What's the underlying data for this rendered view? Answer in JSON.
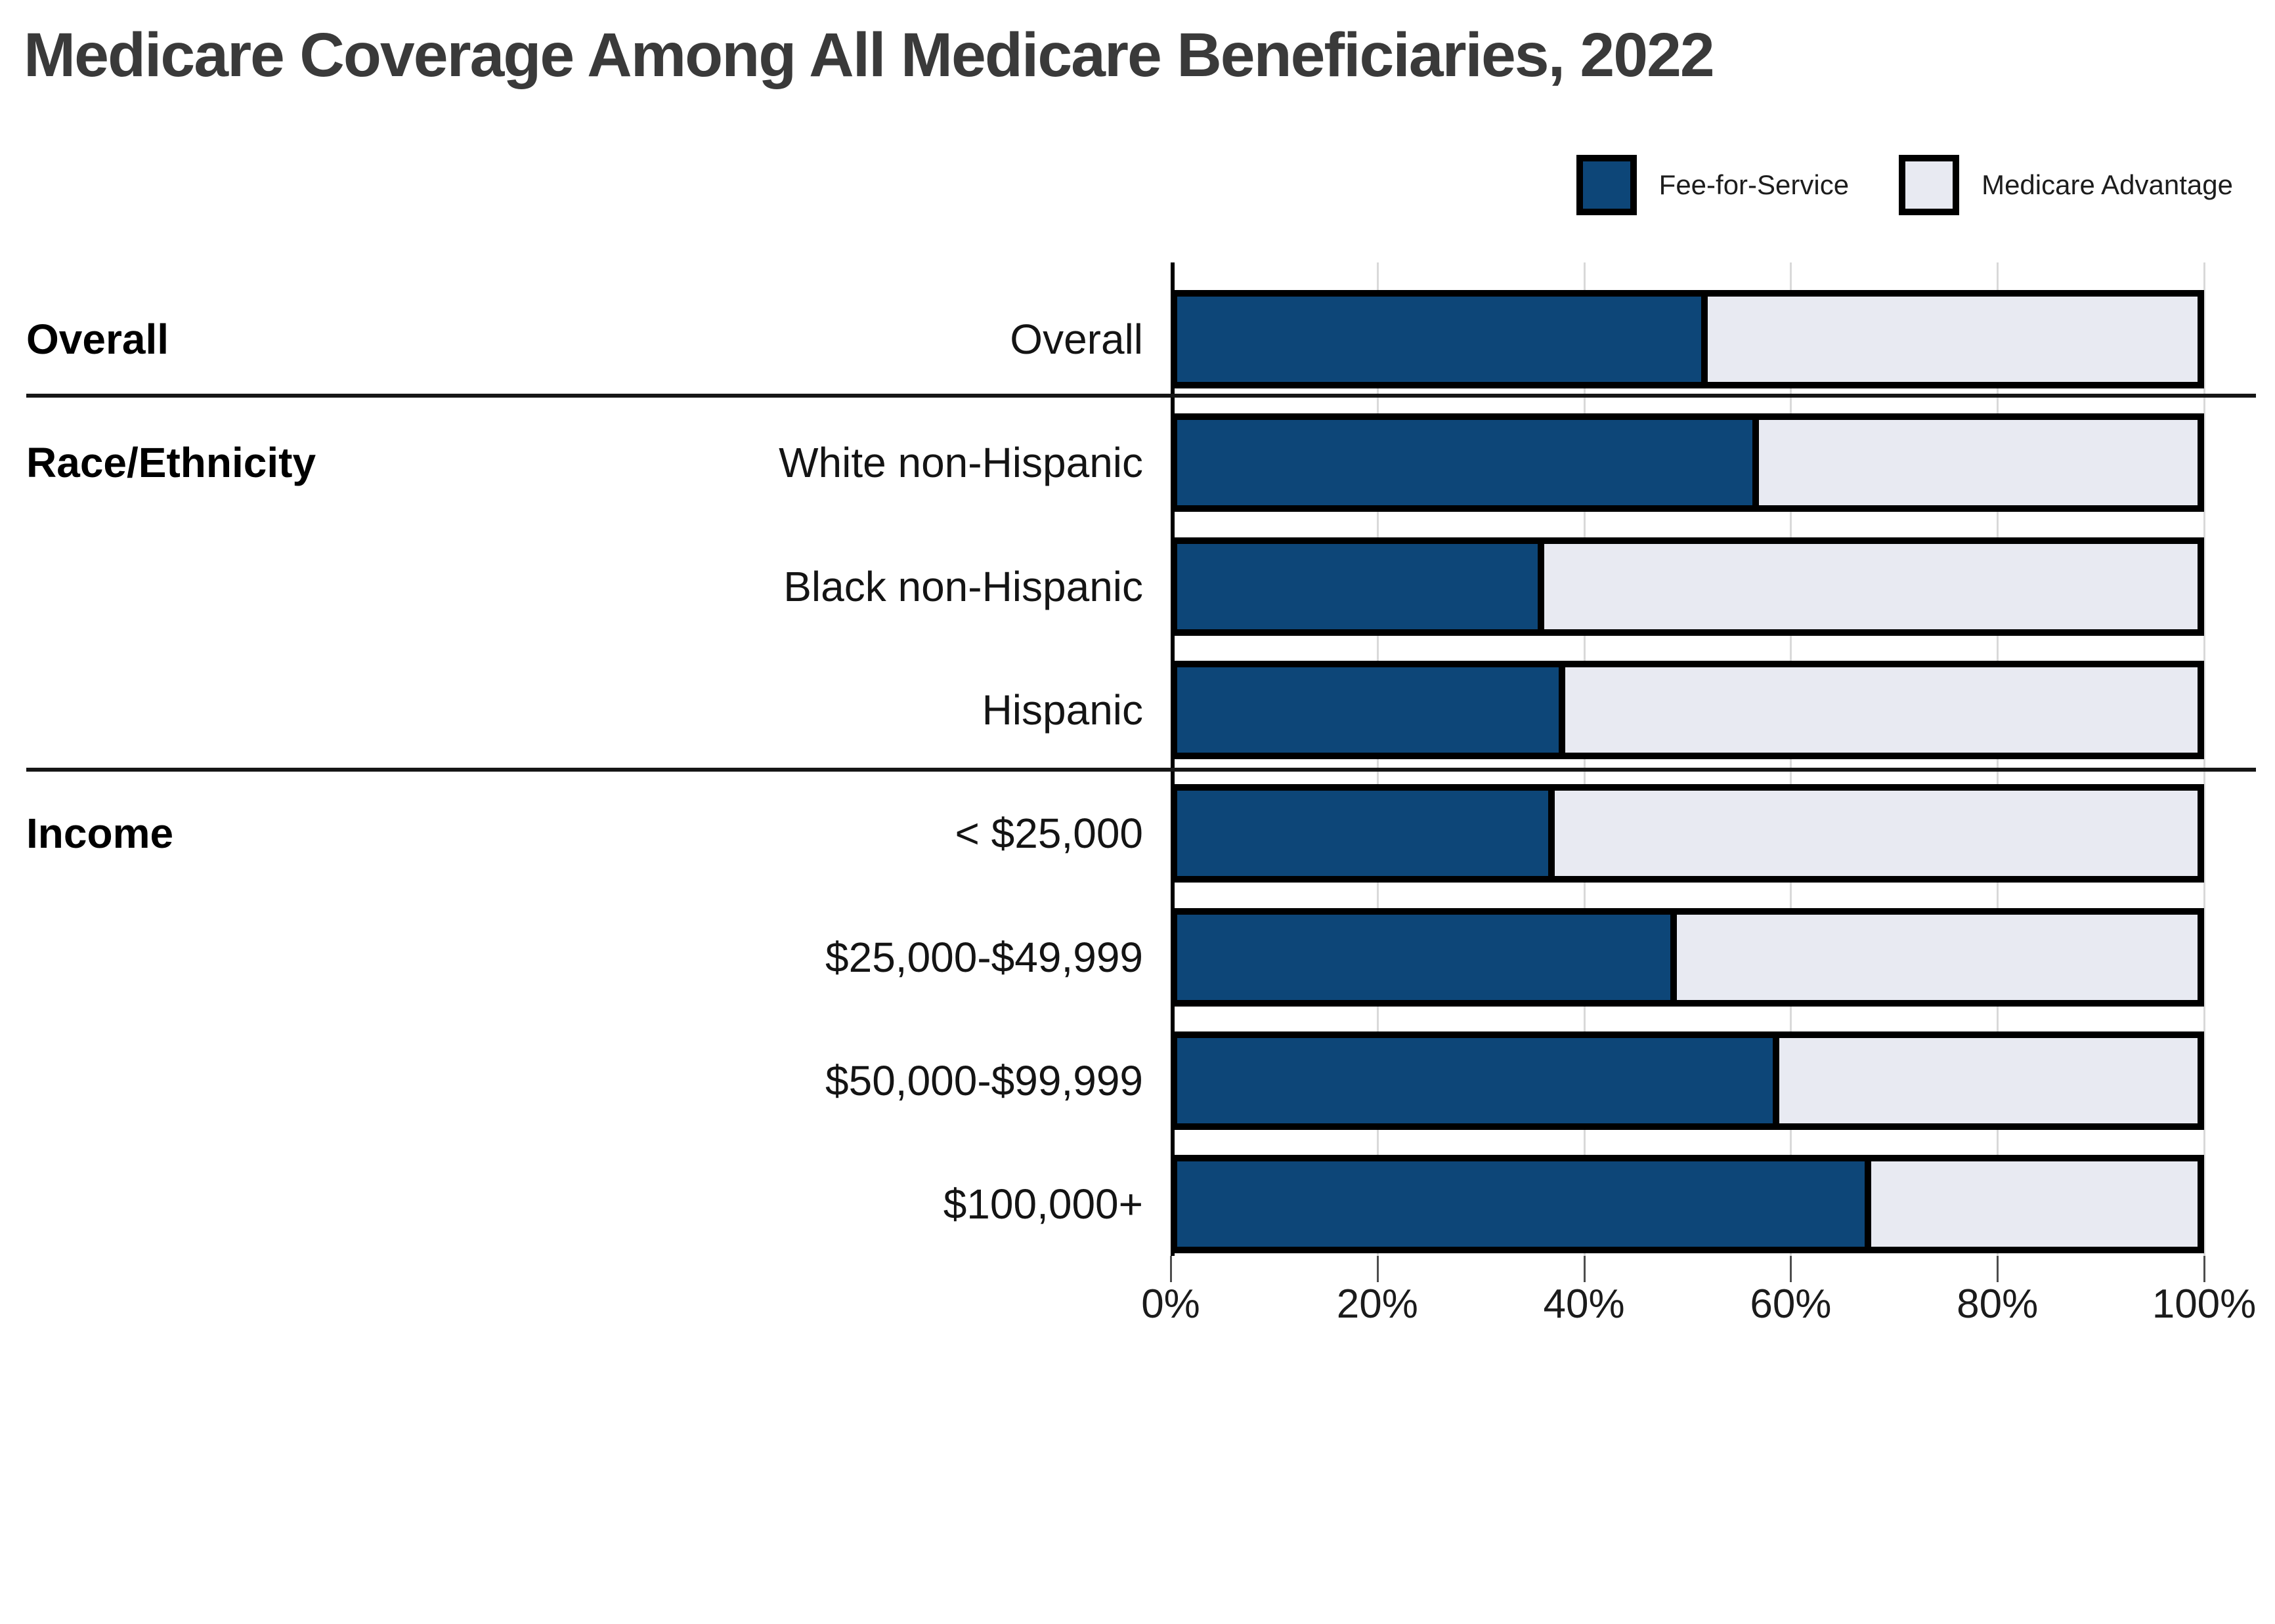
{
  "title": "Medicare Coverage Among All Medicare Beneficiaries, 2022",
  "legend": {
    "items": [
      {
        "label": "Fee-for-Service",
        "color": "#0d4678"
      },
      {
        "label": "Medicare Advantage",
        "color": "#e8eaf2"
      }
    ]
  },
  "x_axis": {
    "tick_labels": [
      "0%",
      "20%",
      "40%",
      "60%",
      "80%",
      "100%"
    ],
    "min": 0,
    "max": 100
  },
  "chart_data": {
    "type": "bar",
    "orientation": "horizontal",
    "stacked": true,
    "title": "Medicare Coverage Among All Medicare Beneficiaries, 2022",
    "xlabel": "",
    "ylabel": "",
    "xlim": [
      0,
      100
    ],
    "x_tick_labels": [
      "0%",
      "20%",
      "40%",
      "60%",
      "80%",
      "100%"
    ],
    "grid": "vertical",
    "legend_position": "top-right",
    "series_names": [
      "Fee-for-Service",
      "Medicare Advantage"
    ],
    "colors": {
      "Fee-for-Service": "#0d4678",
      "Medicare Advantage": "#e8eaf2"
    },
    "groups": [
      {
        "group": "Overall",
        "rows": [
          {
            "category": "Overall",
            "values": {
              "Fee-for-Service": 52,
              "Medicare Advantage": 48
            }
          }
        ]
      },
      {
        "group": "Race/Ethnicity",
        "rows": [
          {
            "category": "White non-Hispanic",
            "values": {
              "Fee-for-Service": 57,
              "Medicare Advantage": 43
            }
          },
          {
            "category": "Black non-Hispanic",
            "values": {
              "Fee-for-Service": 36,
              "Medicare Advantage": 64
            }
          },
          {
            "category": "Hispanic",
            "values": {
              "Fee-for-Service": 38,
              "Medicare Advantage": 62
            }
          }
        ]
      },
      {
        "group": "Income",
        "rows": [
          {
            "category": "< $25,000",
            "values": {
              "Fee-for-Service": 37,
              "Medicare Advantage": 63
            }
          },
          {
            "category": "$25,000-$49,999",
            "values": {
              "Fee-for-Service": 49,
              "Medicare Advantage": 51
            }
          },
          {
            "category": "$50,000-$99,999",
            "values": {
              "Fee-for-Service": 59,
              "Medicare Advantage": 41
            }
          },
          {
            "category": "$100,000+",
            "values": {
              "Fee-for-Service": 68,
              "Medicare Advantage": 32
            }
          }
        ]
      }
    ]
  }
}
